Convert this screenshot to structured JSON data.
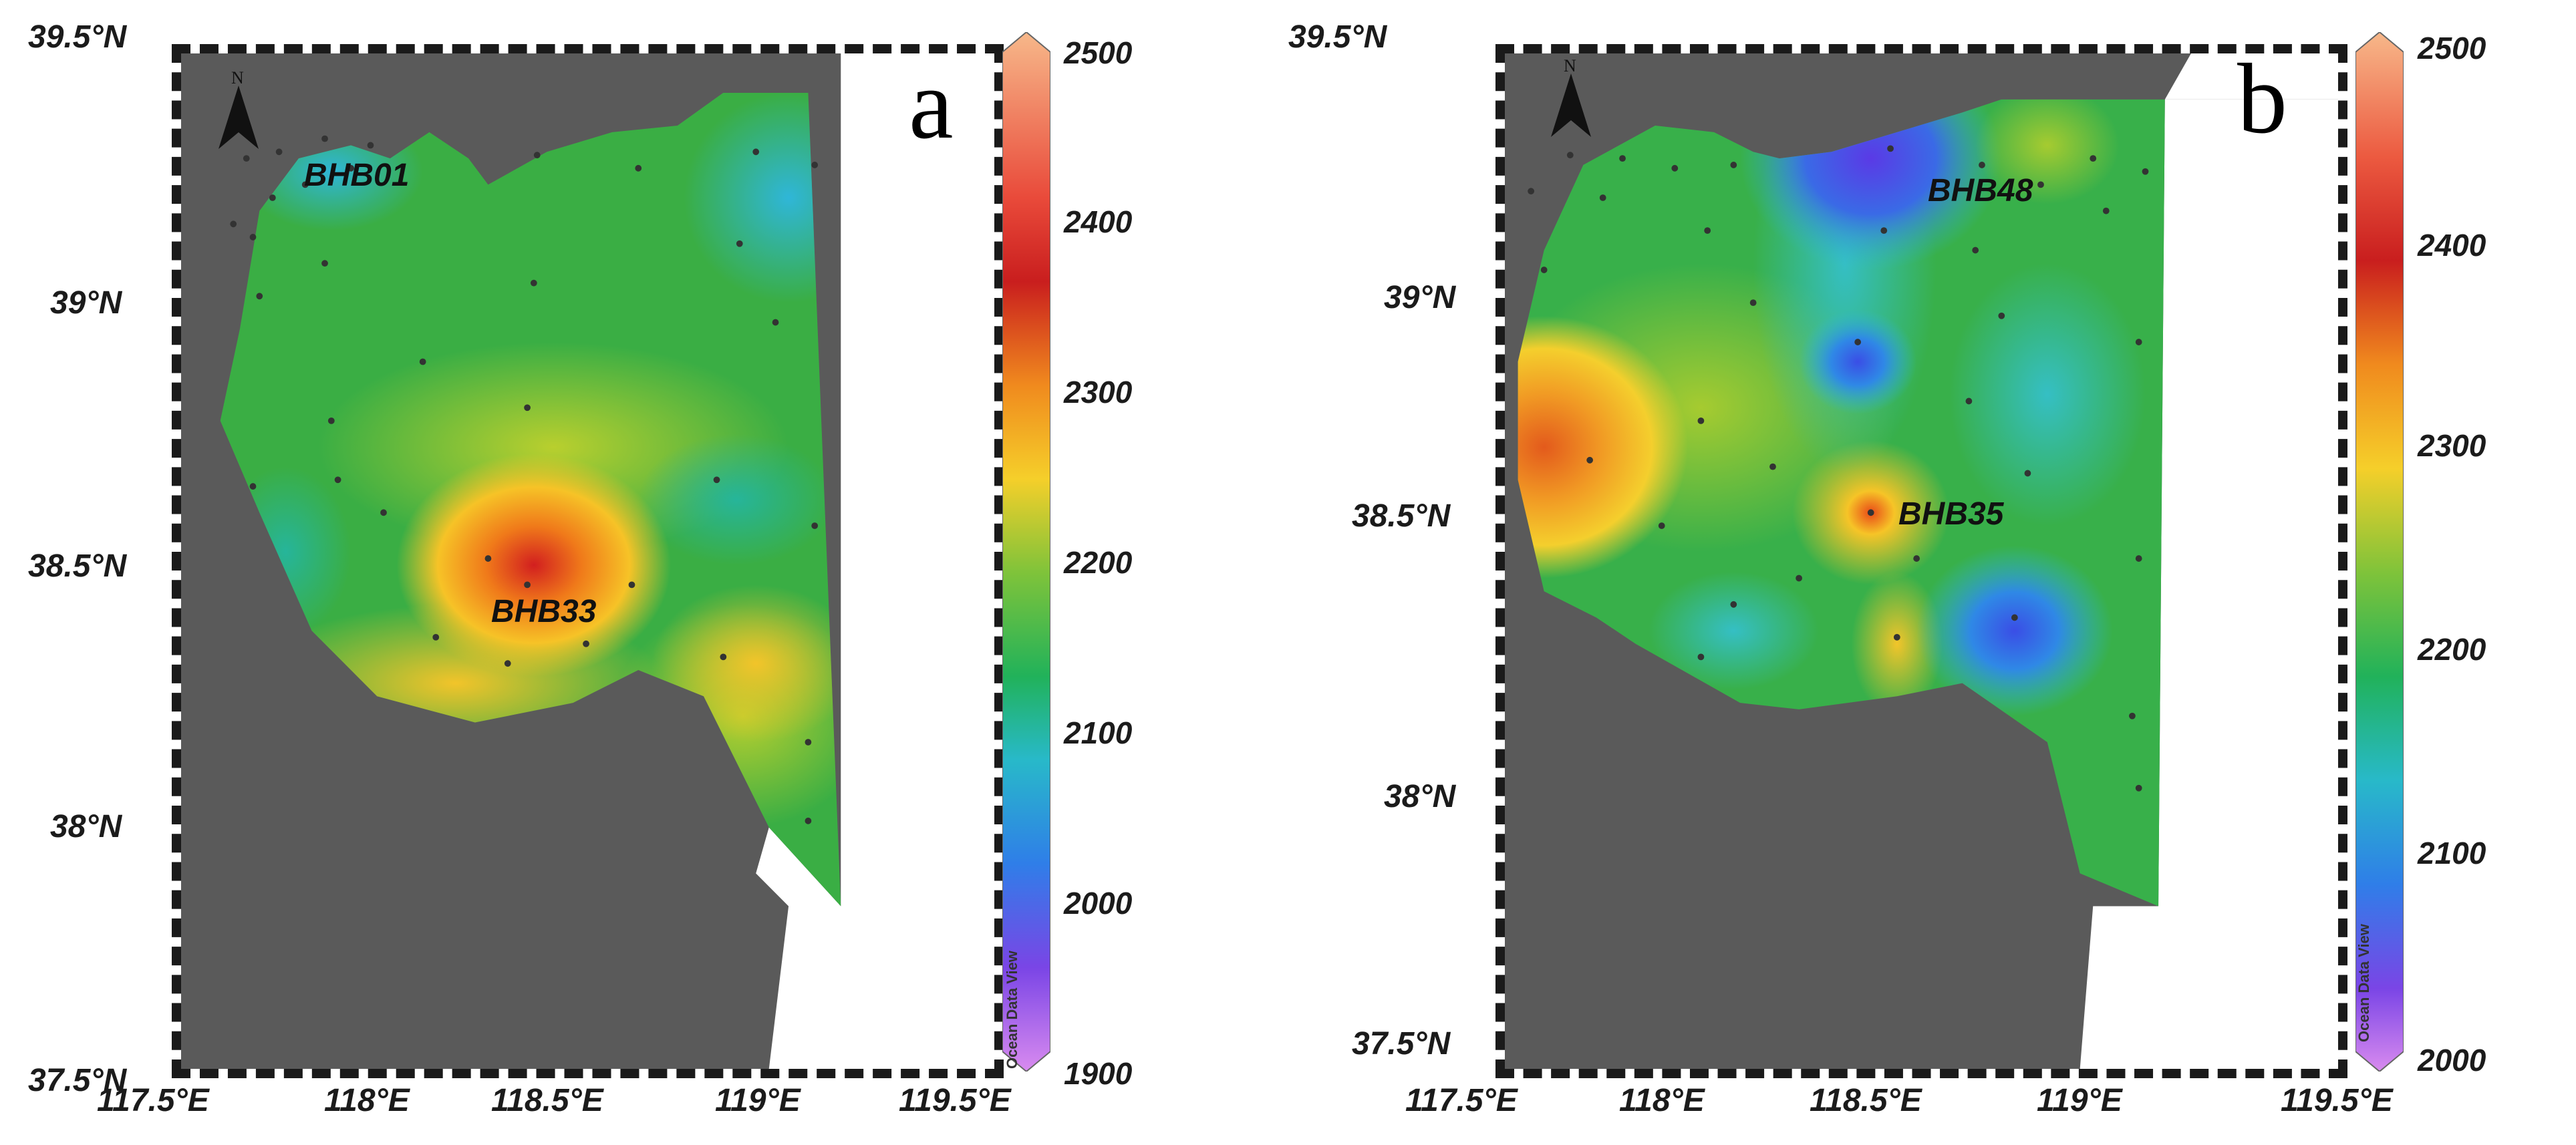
{
  "panels": [
    {
      "id": "a",
      "letter": "a",
      "north_label": "N",
      "lat_labels": [
        "39.5°N",
        "39°N",
        "38.5°N",
        "38°N",
        "37.5°N"
      ],
      "lon_labels": [
        "117.5°E",
        "118°E",
        "118.5°E",
        "119°E",
        "119.5°E"
      ],
      "station_labels": [
        "BHB01",
        "BHB33"
      ],
      "colorbar": {
        "ticks": [
          "2500",
          "2400",
          "2300",
          "2200",
          "2100",
          "2000",
          "1900"
        ],
        "range": [
          1900,
          2500
        ],
        "source_label": "Ocean Data View"
      }
    },
    {
      "id": "b",
      "letter": "b",
      "north_label": "N",
      "lat_labels": [
        "39.5°N",
        "39°N",
        "38.5°N",
        "38°N",
        "37.5°N"
      ],
      "lon_labels": [
        "117.5°E",
        "118°E",
        "118.5°E",
        "119°E",
        "119.5°E"
      ],
      "station_labels": [
        "BHB48",
        "BHB35"
      ],
      "colorbar": {
        "ticks": [
          "2500",
          "2400",
          "2300",
          "2200",
          "2100",
          "2000"
        ],
        "range": [
          2000,
          2500
        ],
        "source_label": "Ocean Data View"
      }
    }
  ],
  "colors": {
    "land": "#5a5a5a",
    "sea_background": "#2fa84a",
    "frame": "#1a1a1a"
  }
}
